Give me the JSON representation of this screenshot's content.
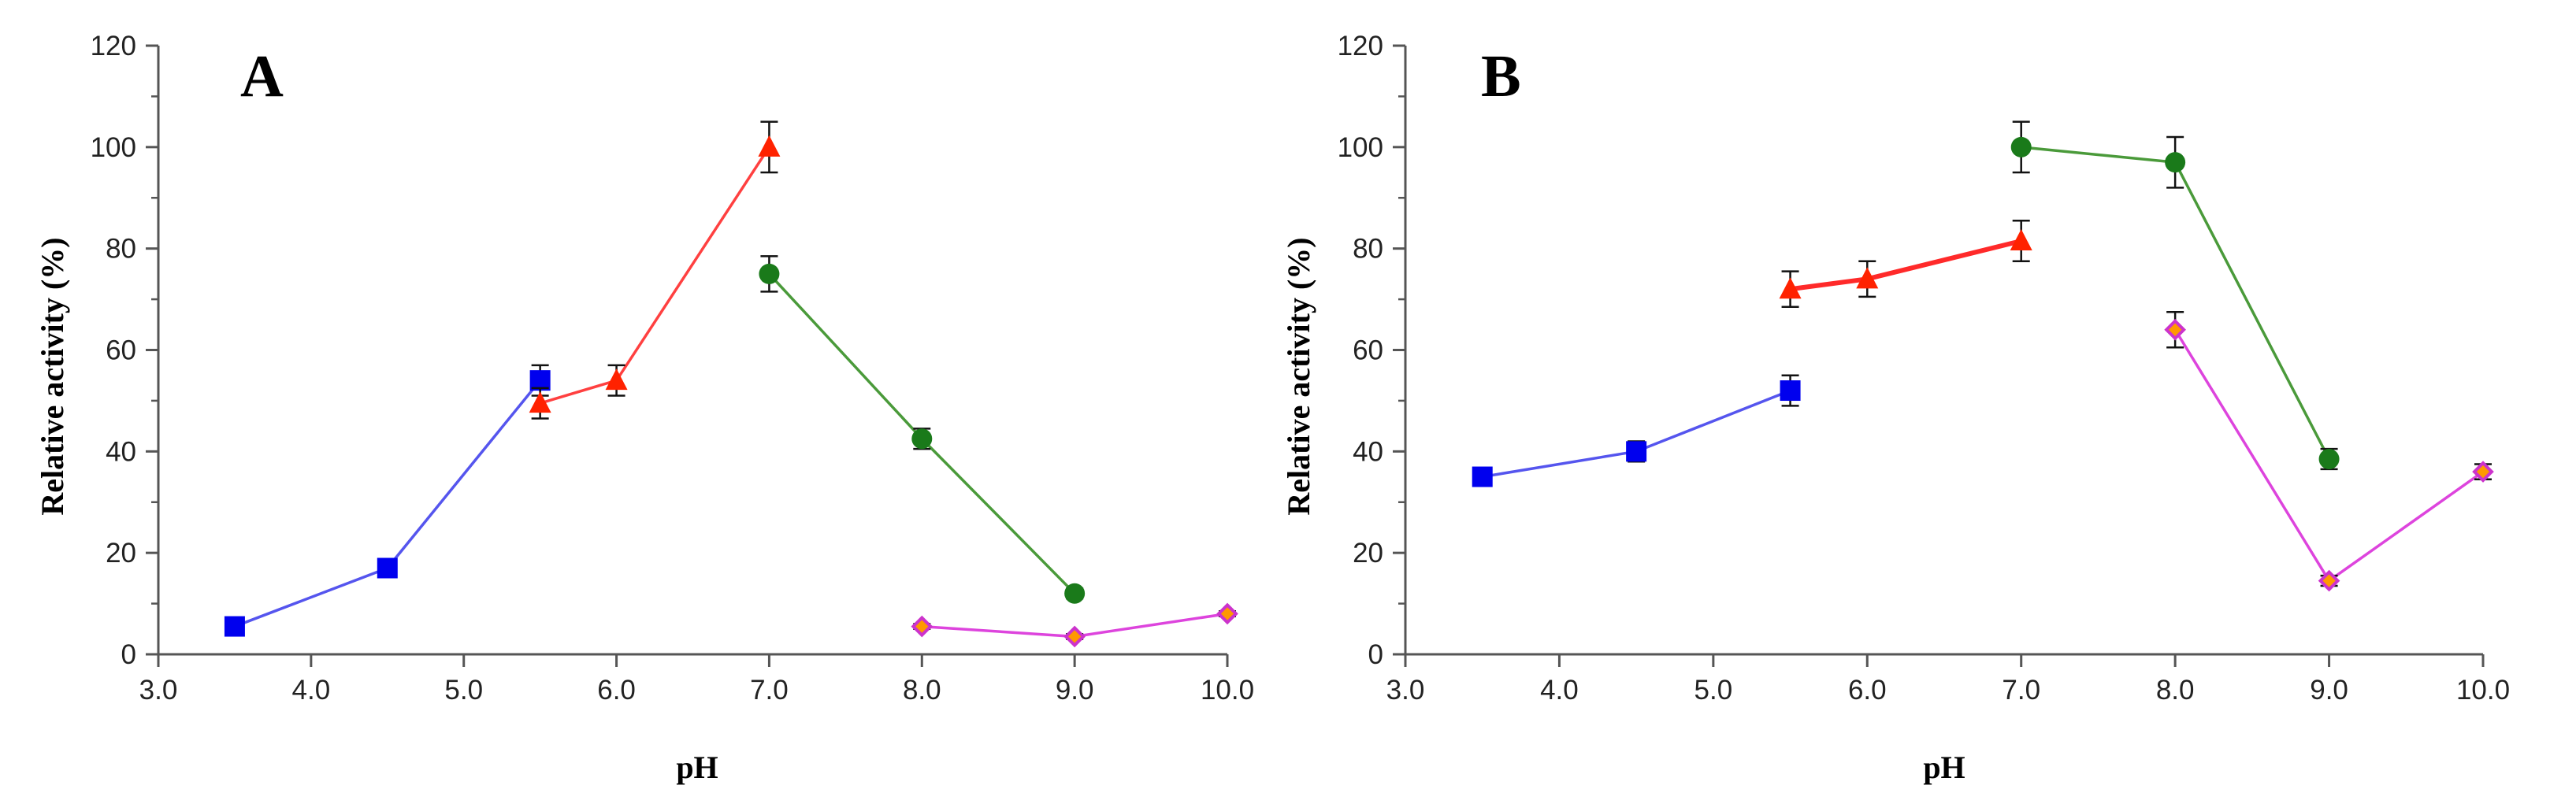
{
  "chart_data": [
    {
      "type": "line",
      "panel_label": "A",
      "xlabel": "pH",
      "ylabel": "Relative activity  (%)",
      "xlim": [
        3.0,
        10.0
      ],
      "ylim": [
        0,
        120
      ],
      "xticks": [
        "3.0",
        "4.0",
        "5.0",
        "6.0",
        "7.0",
        "8.0",
        "9.0",
        "10.0"
      ],
      "yticks": [
        "0",
        "20",
        "40",
        "60",
        "80",
        "100",
        "120"
      ],
      "series": [
        {
          "name": "series-blue",
          "color": "#0000ee",
          "line_color": "#5555ee",
          "marker": "square",
          "x": [
            3.5,
            4.5,
            5.5
          ],
          "y": [
            5.5,
            17.0,
            54.0
          ],
          "err": [
            0.8,
            1.5,
            3.0
          ]
        },
        {
          "name": "series-red",
          "color": "#ff2200",
          "line_color": "#ff4040",
          "marker": "triangle",
          "x": [
            5.5,
            6.0,
            7.0
          ],
          "y": [
            49.5,
            54.0,
            100.0
          ],
          "err": [
            3.0,
            3.0,
            5.0
          ]
        },
        {
          "name": "series-green",
          "color": "#1a7a1a",
          "line_color": "#4a9a3a",
          "marker": "circle",
          "x": [
            7.0,
            8.0,
            9.0
          ],
          "y": [
            75.0,
            42.5,
            12.0
          ],
          "err": [
            3.5,
            2.0,
            1.0
          ]
        },
        {
          "name": "series-magenta",
          "color": "#cc33cc",
          "line_color": "#dd44dd",
          "marker": "diamond",
          "x": [
            8.0,
            9.0,
            10.0
          ],
          "y": [
            5.5,
            3.5,
            8.0
          ],
          "err": [
            0.5,
            0.5,
            0.5
          ]
        }
      ]
    },
    {
      "type": "line",
      "panel_label": "B",
      "xlabel": "pH",
      "ylabel": "Relative activity  (%)",
      "xlim": [
        3.0,
        10.0
      ],
      "ylim": [
        0,
        120
      ],
      "xticks": [
        "3.0",
        "4.0",
        "5.0",
        "6.0",
        "7.0",
        "8.0",
        "9.0",
        "10.0"
      ],
      "yticks": [
        "0",
        "20",
        "40",
        "60",
        "80",
        "100",
        "120"
      ],
      "series": [
        {
          "name": "series-blue",
          "color": "#0000ee",
          "line_color": "#5555ee",
          "marker": "square",
          "x": [
            3.5,
            4.5,
            5.5
          ],
          "y": [
            35.0,
            40.0,
            52.0
          ],
          "err": [
            1.5,
            2.0,
            3.0
          ]
        },
        {
          "name": "series-red",
          "color": "#ff2200",
          "line_color": "#ff2a2a",
          "marker": "triangle",
          "x": [
            5.5,
            6.0,
            7.0
          ],
          "y": [
            72.0,
            74.0,
            81.5
          ],
          "err": [
            3.5,
            3.5,
            4.0
          ]
        },
        {
          "name": "series-green",
          "color": "#1a7a1a",
          "line_color": "#4a9a3a",
          "marker": "circle",
          "x": [
            7.0,
            8.0,
            9.0
          ],
          "y": [
            100.0,
            97.0,
            38.5
          ],
          "err": [
            5.0,
            5.0,
            2.0
          ]
        },
        {
          "name": "series-magenta",
          "color": "#cc33cc",
          "line_color": "#dd44dd",
          "marker": "diamond",
          "x": [
            8.0,
            9.0,
            10.0
          ],
          "y": [
            64.0,
            14.5,
            36.0
          ],
          "err": [
            3.5,
            1.0,
            1.5
          ]
        }
      ]
    }
  ]
}
